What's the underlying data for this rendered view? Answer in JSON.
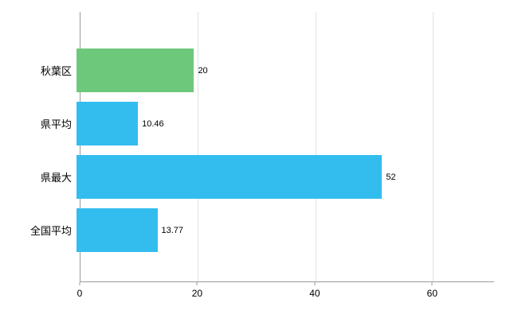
{
  "chart_data": {
    "type": "bar",
    "orientation": "horizontal",
    "title": "",
    "xlabel": "",
    "ylabel": "",
    "categories": [
      "秋葉区",
      "県平均",
      "県最大",
      "全国平均"
    ],
    "values": [
      20,
      10.46,
      52,
      13.77
    ],
    "value_labels": [
      "20",
      "10.46",
      "52",
      "13.77"
    ],
    "bar_colors": [
      "#6ec87c",
      "#33bdef",
      "#33bdef",
      "#33bdef"
    ],
    "xlim": [
      0,
      70.4
    ],
    "x_ticks": [
      0,
      20,
      40,
      60
    ],
    "grid": "vertical-gridlines-on",
    "legend": "none",
    "colors": {
      "bar_green": "#6ec87c",
      "bar_blue": "#33bdef",
      "gridline": "#e2e2e2",
      "axis": "#9a9a9a",
      "text": "#000000",
      "background": "#ffffff"
    }
  }
}
